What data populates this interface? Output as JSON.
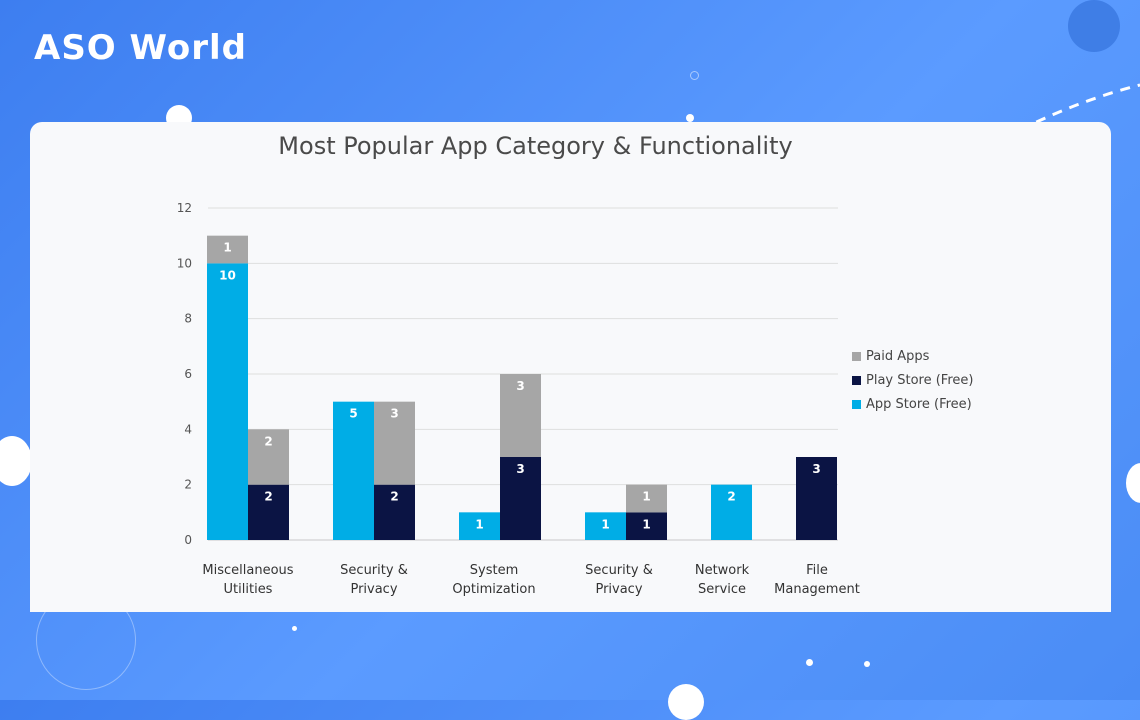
{
  "brand": {
    "logo_text": "ASO World"
  },
  "colors": {
    "paid": "#a6a6a6",
    "play": "#0b1444",
    "app": "#00ade6"
  },
  "chart_data": {
    "type": "bar",
    "stacked": true,
    "title": "Most Popular App Category & Functionality",
    "categories": [
      [
        "Miscellaneous",
        "Utilities"
      ],
      [
        "Security &",
        "Privacy"
      ],
      [
        "System",
        "Optimization"
      ],
      [
        "Security &",
        "Privacy"
      ],
      [
        "Network",
        "Service"
      ],
      [
        "File",
        "Management"
      ]
    ],
    "bars": [
      {
        "category": 0,
        "stack": [
          {
            "series": "App Store (Free)",
            "value": 10
          },
          {
            "series": "Paid Apps",
            "value": 1
          }
        ]
      },
      {
        "category": 0,
        "stack": [
          {
            "series": "Play Store (Free)",
            "value": 2
          },
          {
            "series": "Paid Apps",
            "value": 2
          }
        ]
      },
      {
        "category": 1,
        "stack": [
          {
            "series": "App Store (Free)",
            "value": 5
          }
        ]
      },
      {
        "category": 1,
        "stack": [
          {
            "series": "Play Store (Free)",
            "value": 2
          },
          {
            "series": "Paid Apps",
            "value": 3
          }
        ]
      },
      {
        "category": 2,
        "stack": [
          {
            "series": "App Store (Free)",
            "value": 1
          }
        ]
      },
      {
        "category": 2,
        "stack": [
          {
            "series": "Play Store (Free)",
            "value": 3
          },
          {
            "series": "Paid Apps",
            "value": 3
          }
        ]
      },
      {
        "category": 3,
        "stack": [
          {
            "series": "App Store (Free)",
            "value": 1
          }
        ]
      },
      {
        "category": 3,
        "stack": [
          {
            "series": "Play Store (Free)",
            "value": 1
          },
          {
            "series": "Paid Apps",
            "value": 1
          }
        ]
      },
      {
        "category": 4,
        "stack": [
          {
            "series": "App Store (Free)",
            "value": 2
          }
        ]
      },
      {
        "category": 5,
        "stack": [
          {
            "series": "Play Store (Free)",
            "value": 3
          }
        ]
      }
    ],
    "ylim": [
      0,
      12
    ],
    "yticks": [
      0,
      2,
      4,
      6,
      8,
      10,
      12
    ],
    "grid": true,
    "legend": {
      "placement": "right",
      "items": [
        {
          "label": "Paid Apps",
          "color": "#a6a6a6"
        },
        {
          "label": "Play Store (Free)",
          "color": "#0b1444"
        },
        {
          "label": "App Store (Free)",
          "color": "#00ade6"
        }
      ]
    }
  }
}
